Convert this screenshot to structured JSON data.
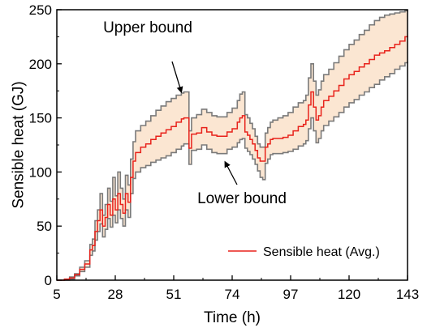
{
  "chart_data": {
    "type": "area",
    "title": "",
    "xlabel": "Time (h)",
    "ylabel": "Sensible heat (GJ)",
    "xlim": [
      5,
      143
    ],
    "ylim": [
      0,
      250
    ],
    "x_ticks": [
      5,
      28,
      51,
      74,
      97,
      120,
      143
    ],
    "y_ticks": [
      0,
      50,
      100,
      150,
      200,
      250
    ],
    "grid": false,
    "legend_position": "bottom-right",
    "series": [
      {
        "name": "Sensible heat (Avg.)",
        "color": "#e8221b",
        "x": [
          5,
          8,
          10,
          12,
          14,
          16,
          18,
          19,
          20,
          21,
          22,
          23,
          24,
          25,
          26,
          27,
          28,
          29,
          30,
          31,
          32,
          33,
          34,
          35,
          36,
          38,
          40,
          42,
          44,
          46,
          48,
          50,
          52,
          54,
          55,
          56,
          57,
          58,
          60,
          62,
          64,
          66,
          68,
          70,
          72,
          74,
          76,
          77,
          78,
          79,
          80,
          81,
          82,
          83,
          84,
          85,
          86,
          87,
          88,
          89,
          90,
          92,
          94,
          96,
          98,
          100,
          102,
          103,
          104,
          105,
          106,
          107,
          108,
          109,
          110,
          112,
          114,
          116,
          118,
          120,
          122,
          124,
          126,
          128,
          130,
          132,
          134,
          136,
          138,
          140,
          142,
          143
        ],
        "values": [
          0,
          1,
          2,
          5,
          10,
          15,
          28,
          32,
          45,
          55,
          65,
          50,
          58,
          70,
          60,
          75,
          65,
          80,
          70,
          62,
          80,
          72,
          95,
          110,
          118,
          123,
          126,
          130,
          133,
          136,
          139,
          142,
          146,
          149,
          150,
          150,
          122,
          135,
          136,
          141,
          137,
          134,
          133,
          133,
          137,
          140,
          146,
          150,
          152,
          137,
          134,
          130,
          126,
          120,
          113,
          110,
          110,
          123,
          126,
          130,
          131,
          131,
          132,
          134,
          138,
          142,
          144,
          148,
          162,
          174,
          160,
          148,
          152,
          160,
          166,
          170,
          175,
          180,
          186,
          190,
          193,
          197,
          200,
          204,
          208,
          210,
          212,
          215,
          218,
          221,
          225,
          226
        ]
      },
      {
        "name": "Upper bound",
        "color": "#7a7a7a",
        "x": [
          5,
          8,
          10,
          12,
          14,
          16,
          18,
          19,
          20,
          21,
          22,
          23,
          24,
          25,
          26,
          27,
          28,
          29,
          30,
          31,
          32,
          33,
          34,
          35,
          36,
          38,
          40,
          42,
          44,
          46,
          48,
          50,
          52,
          54,
          55,
          56,
          57,
          58,
          60,
          62,
          64,
          66,
          68,
          70,
          72,
          74,
          76,
          77,
          78,
          79,
          80,
          81,
          82,
          83,
          84,
          85,
          86,
          87,
          88,
          89,
          90,
          92,
          94,
          96,
          98,
          100,
          102,
          103,
          104,
          105,
          106,
          107,
          108,
          109,
          110,
          112,
          114,
          116,
          118,
          120,
          122,
          124,
          126,
          128,
          130,
          132,
          134,
          136,
          138,
          140,
          142,
          143
        ],
        "values": [
          0,
          1,
          3,
          6,
          12,
          18,
          33,
          38,
          55,
          65,
          80,
          60,
          70,
          85,
          73,
          95,
          78,
          100,
          85,
          75,
          97,
          88,
          112,
          128,
          138,
          143,
          147,
          152,
          157,
          161,
          165,
          168,
          171,
          173,
          174,
          174,
          138,
          150,
          153,
          158,
          155,
          152,
          151,
          151,
          155,
          159,
          166,
          172,
          174,
          153,
          150,
          145,
          140,
          133,
          126,
          123,
          123,
          136,
          141,
          146,
          148,
          150,
          152,
          155,
          160,
          164,
          166,
          171,
          187,
          200,
          184,
          171,
          176,
          184,
          190,
          195,
          201,
          207,
          213,
          218,
          222,
          227,
          231,
          236,
          240,
          243,
          245,
          246,
          247,
          248,
          249,
          250
        ]
      },
      {
        "name": "Lower bound",
        "color": "#7a7a7a",
        "x": [
          5,
          8,
          10,
          12,
          14,
          16,
          18,
          19,
          20,
          21,
          22,
          23,
          24,
          25,
          26,
          27,
          28,
          29,
          30,
          31,
          32,
          33,
          34,
          35,
          36,
          38,
          40,
          42,
          44,
          46,
          48,
          50,
          52,
          54,
          55,
          56,
          57,
          58,
          60,
          62,
          64,
          66,
          68,
          70,
          72,
          74,
          76,
          77,
          78,
          79,
          80,
          81,
          82,
          83,
          84,
          85,
          86,
          87,
          88,
          89,
          90,
          92,
          94,
          96,
          98,
          100,
          102,
          103,
          104,
          105,
          106,
          107,
          108,
          109,
          110,
          112,
          114,
          116,
          118,
          120,
          122,
          124,
          126,
          128,
          130,
          132,
          134,
          136,
          138,
          140,
          142,
          143
        ],
        "values": [
          0,
          0,
          1,
          4,
          8,
          12,
          23,
          27,
          37,
          45,
          52,
          40,
          47,
          57,
          49,
          60,
          53,
          65,
          57,
          50,
          65,
          58,
          80,
          94,
          100,
          104,
          106,
          109,
          111,
          113,
          115,
          118,
          121,
          124,
          126,
          126,
          107,
          120,
          121,
          125,
          121,
          118,
          117,
          117,
          121,
          123,
          127,
          130,
          131,
          122,
          119,
          116,
          112,
          107,
          101,
          95,
          93,
          108,
          112,
          116,
          117,
          117,
          118,
          119,
          121,
          124,
          126,
          129,
          140,
          150,
          138,
          127,
          131,
          138,
          143,
          147,
          151,
          155,
          160,
          164,
          167,
          171,
          174,
          178,
          181,
          185,
          188,
          191,
          195,
          198,
          201,
          202
        ]
      }
    ],
    "band": {
      "fill": "#fbe6d2"
    },
    "annotations": [
      {
        "text": "Upper bound",
        "x": 53,
        "y": 172,
        "arrow": "down"
      },
      {
        "text": "Lower bound",
        "x": 70,
        "y": 112,
        "arrow": "up"
      }
    ]
  }
}
